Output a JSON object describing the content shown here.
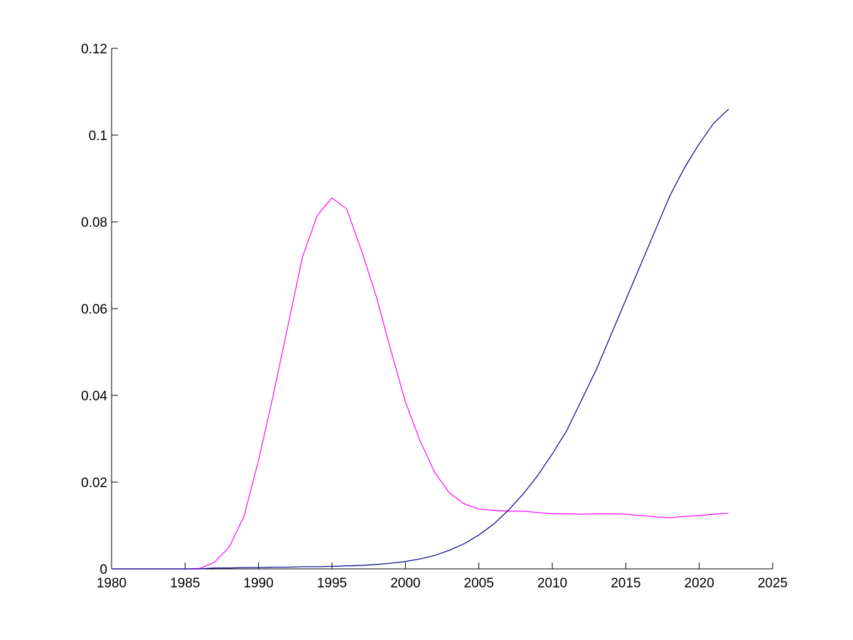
{
  "chart_data": {
    "type": "line",
    "title": "",
    "xlabel": "",
    "ylabel": "",
    "xlim": [
      1980,
      2025
    ],
    "ylim": [
      0,
      0.12
    ],
    "xticks": [
      1980,
      1985,
      1990,
      1995,
      2000,
      2005,
      2010,
      2015,
      2020,
      2025
    ],
    "yticks": [
      0,
      0.02,
      0.04,
      0.06,
      0.08,
      0.1,
      0.12
    ],
    "xtick_labels": [
      "1980",
      "1985",
      "1990",
      "1995",
      "2000",
      "2005",
      "2010",
      "2015",
      "2020",
      "2025"
    ],
    "ytick_labels": [
      "0",
      "0.02",
      "0.04",
      "0.06",
      "0.08",
      "0.1",
      "0.12"
    ],
    "grid": false,
    "legend": "none",
    "series": [
      {
        "color": "#ff00ff",
        "x": [
          1980,
          1981,
          1982,
          1983,
          1984,
          1985,
          1986,
          1987,
          1988,
          1989,
          1990,
          1991,
          1992,
          1993,
          1994,
          1995,
          1996,
          1997,
          1998,
          1999,
          2000,
          2001,
          2002,
          2003,
          2004,
          2005,
          2006,
          2007,
          2008,
          2009,
          2010,
          2011,
          2012,
          2013,
          2014,
          2015,
          2016,
          2017,
          2018,
          2019,
          2020,
          2021,
          2022
        ],
        "y": [
          0,
          0,
          0,
          0,
          0,
          0,
          0.0001,
          0.0015,
          0.005,
          0.012,
          0.025,
          0.04,
          0.056,
          0.072,
          0.0815,
          0.0855,
          0.083,
          0.0735,
          0.063,
          0.0505,
          0.0385,
          0.0295,
          0.0222,
          0.0175,
          0.015,
          0.0138,
          0.0135,
          0.0133,
          0.0133,
          0.013,
          0.0127,
          0.0127,
          0.0126,
          0.0127,
          0.0127,
          0.0126,
          0.0123,
          0.012,
          0.0118,
          0.0121,
          0.0123,
          0.0126,
          0.0128
        ]
      },
      {
        "color": "#00008b",
        "x": [
          1980,
          1981,
          1982,
          1983,
          1984,
          1985,
          1986,
          1987,
          1988,
          1989,
          1990,
          1991,
          1992,
          1993,
          1994,
          1995,
          1996,
          1997,
          1998,
          1999,
          2000,
          2001,
          2002,
          2003,
          2004,
          2005,
          2006,
          2007,
          2008,
          2009,
          2010,
          2011,
          2012,
          2013,
          2014,
          2015,
          2016,
          2017,
          2018,
          2019,
          2020,
          2021,
          2022
        ],
        "y": [
          0,
          0,
          0,
          0,
          0,
          0,
          0,
          0.0002,
          0.0002,
          0.0003,
          0.0003,
          0.0004,
          0.0004,
          0.0005,
          0.0005,
          0.0006,
          0.0007,
          0.0008,
          0.001,
          0.0013,
          0.0017,
          0.0023,
          0.0031,
          0.0043,
          0.0058,
          0.0078,
          0.0103,
          0.0135,
          0.0172,
          0.0215,
          0.0265,
          0.032,
          0.039,
          0.046,
          0.054,
          0.062,
          0.07,
          0.078,
          0.086,
          0.0925,
          0.098,
          0.1028,
          0.106
        ]
      }
    ]
  }
}
